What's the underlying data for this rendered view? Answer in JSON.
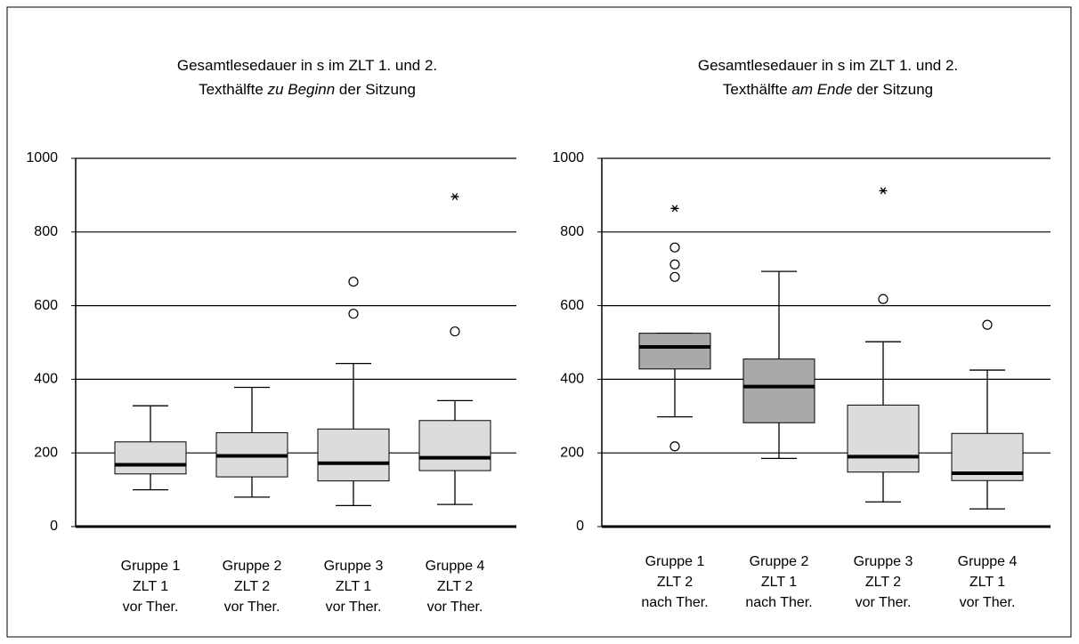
{
  "chart_data": [
    {
      "type": "box",
      "title_lines": [
        [
          {
            "text": "Gesamtlesedauer in s im ZLT 1. und 2."
          }
        ],
        [
          {
            "text": "Texthälfte "
          },
          {
            "text": "zu Beginn",
            "italic": true
          },
          {
            "text": " der Sitzung"
          }
        ]
      ],
      "categories": [
        [
          "Gruppe 1",
          "ZLT 1",
          "vor Ther."
        ],
        [
          "Gruppe 2",
          "ZLT 2",
          "vor Ther."
        ],
        [
          "Gruppe 3",
          "ZLT 1",
          "vor Ther."
        ],
        [
          "Gruppe 4",
          "ZLT 2",
          "vor Ther."
        ]
      ],
      "boxes": [
        {
          "whisker_low": 100,
          "q1": 143,
          "median": 168,
          "q3": 230,
          "whisker_high": 328,
          "outliers": [],
          "extremes": [],
          "color": "#dcdcdc"
        },
        {
          "whisker_low": 80,
          "q1": 135,
          "median": 192,
          "q3": 255,
          "whisker_high": 378,
          "outliers": [],
          "extremes": [],
          "color": "#dcdcdc"
        },
        {
          "whisker_low": 57,
          "q1": 124,
          "median": 172,
          "q3": 265,
          "whisker_high": 443,
          "outliers": [
            578,
            665
          ],
          "extremes": [],
          "color": "#dcdcdc"
        },
        {
          "whisker_low": 60,
          "q1": 152,
          "median": 187,
          "q3": 288,
          "whisker_high": 342,
          "outliers": [
            530
          ],
          "extremes": [
            896
          ],
          "color": "#dcdcdc"
        }
      ],
      "ylim": [
        0,
        1000
      ],
      "yticks": [
        0,
        200,
        400,
        600,
        800,
        1000
      ],
      "grid": true
    },
    {
      "type": "box",
      "title_lines": [
        [
          {
            "text": "Gesamtlesedauer in s im ZLT 1. und 2."
          }
        ],
        [
          {
            "text": "Texthälfte "
          },
          {
            "text": "am Ende",
            "italic": true
          },
          {
            "text": " der Sitzung"
          }
        ]
      ],
      "categories": [
        [
          "Gruppe 1",
          "ZLT 2",
          "nach Ther."
        ],
        [
          "Gruppe 2",
          "ZLT 1",
          "nach Ther."
        ],
        [
          "Gruppe 3",
          "ZLT 2",
          "vor Ther."
        ],
        [
          "Gruppe 4",
          "ZLT 1",
          "vor Ther."
        ]
      ],
      "boxes": [
        {
          "whisker_low": 298,
          "q1": 428,
          "median": 488,
          "q3": 525,
          "whisker_high": 525,
          "outliers": [
            218,
            678,
            712,
            758
          ],
          "extremes": [
            864
          ],
          "color": "#a9a9a9"
        },
        {
          "whisker_low": 185,
          "q1": 282,
          "median": 380,
          "q3": 455,
          "whisker_high": 693,
          "outliers": [],
          "extremes": [],
          "color": "#a9a9a9"
        },
        {
          "whisker_low": 67,
          "q1": 148,
          "median": 190,
          "q3": 330,
          "whisker_high": 502,
          "outliers": [
            618
          ],
          "extremes": [
            912
          ],
          "color": "#dcdcdc"
        },
        {
          "whisker_low": 48,
          "q1": 125,
          "median": 145,
          "q3": 253,
          "whisker_high": 425,
          "outliers": [
            548
          ],
          "extremes": [],
          "color": "#dcdcdc"
        }
      ],
      "ylim": [
        0,
        1000
      ],
      "yticks": [
        0,
        200,
        400,
        600,
        800,
        1000
      ],
      "grid": true
    }
  ]
}
